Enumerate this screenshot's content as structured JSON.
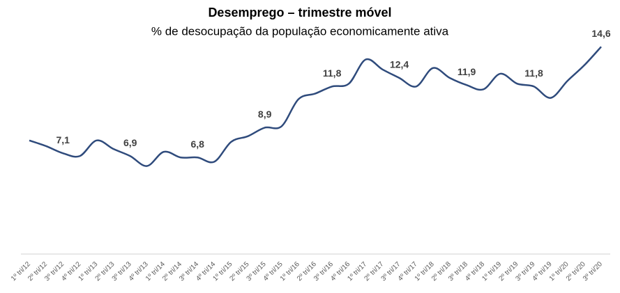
{
  "chart_data": {
    "type": "line",
    "title": "Desemprego – trimestre móvel",
    "subtitle": "% de desocupação da população economicamente ativa",
    "categories": [
      "1º tri/12",
      "2º tri/12",
      "3º tri/12",
      "4º tri/12",
      "1º tri/13",
      "2º tri/13",
      "3º tri/13",
      "4º tri/13",
      "1º tri/14",
      "2º tri/14",
      "3º tri/14",
      "4º tri/14",
      "1º tri/15",
      "2º tri/15",
      "3º tri/15",
      "4º tri/15",
      "1º tri/16",
      "2º tri/16",
      "3º tri/16",
      "4º tri/16",
      "1º tri/17",
      "2º tri/17",
      "3º tri/17",
      "4º tri/17",
      "1º tri/18",
      "2º tri/18",
      "3º tri/18",
      "4º tri/18",
      "1º tri/19",
      "2º tri/19",
      "3º tri/19",
      "4º tri/19",
      "1º tri/20",
      "2º tri/20",
      "3º tri/20"
    ],
    "color": "#2f4b7c",
    "values": [
      8.0,
      7.6,
      7.1,
      6.9,
      8.0,
      7.4,
      6.9,
      6.2,
      7.2,
      6.8,
      6.8,
      6.5,
      7.9,
      8.3,
      8.9,
      9.0,
      10.9,
      11.3,
      11.8,
      12.0,
      13.7,
      13.0,
      12.4,
      11.8,
      13.1,
      12.4,
      11.9,
      11.6,
      12.7,
      12.0,
      11.8,
      11.0,
      12.2,
      13.3,
      14.6
    ],
    "value_labels": [
      null,
      null,
      "7,1",
      null,
      null,
      null,
      "6,9",
      null,
      null,
      null,
      "6,8",
      null,
      null,
      null,
      "8,9",
      null,
      null,
      null,
      "11,8",
      null,
      null,
      null,
      "12,4",
      null,
      null,
      null,
      "11,9",
      null,
      null,
      null,
      "11,8",
      null,
      null,
      null,
      "14,6"
    ]
  }
}
